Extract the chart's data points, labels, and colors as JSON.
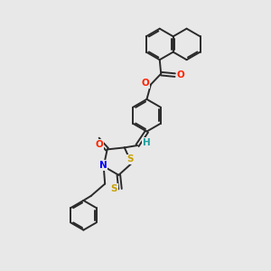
{
  "bg_color": "#e8e8e8",
  "line_color": "#2a2a2a",
  "bond_width": 1.4,
  "atom_colors": {
    "S": "#c8a000",
    "N": "#0000ff",
    "O": "#ff2200",
    "H": "#20a0a0",
    "C": "#2a2a2a"
  },
  "font_size_atom": 7.5
}
